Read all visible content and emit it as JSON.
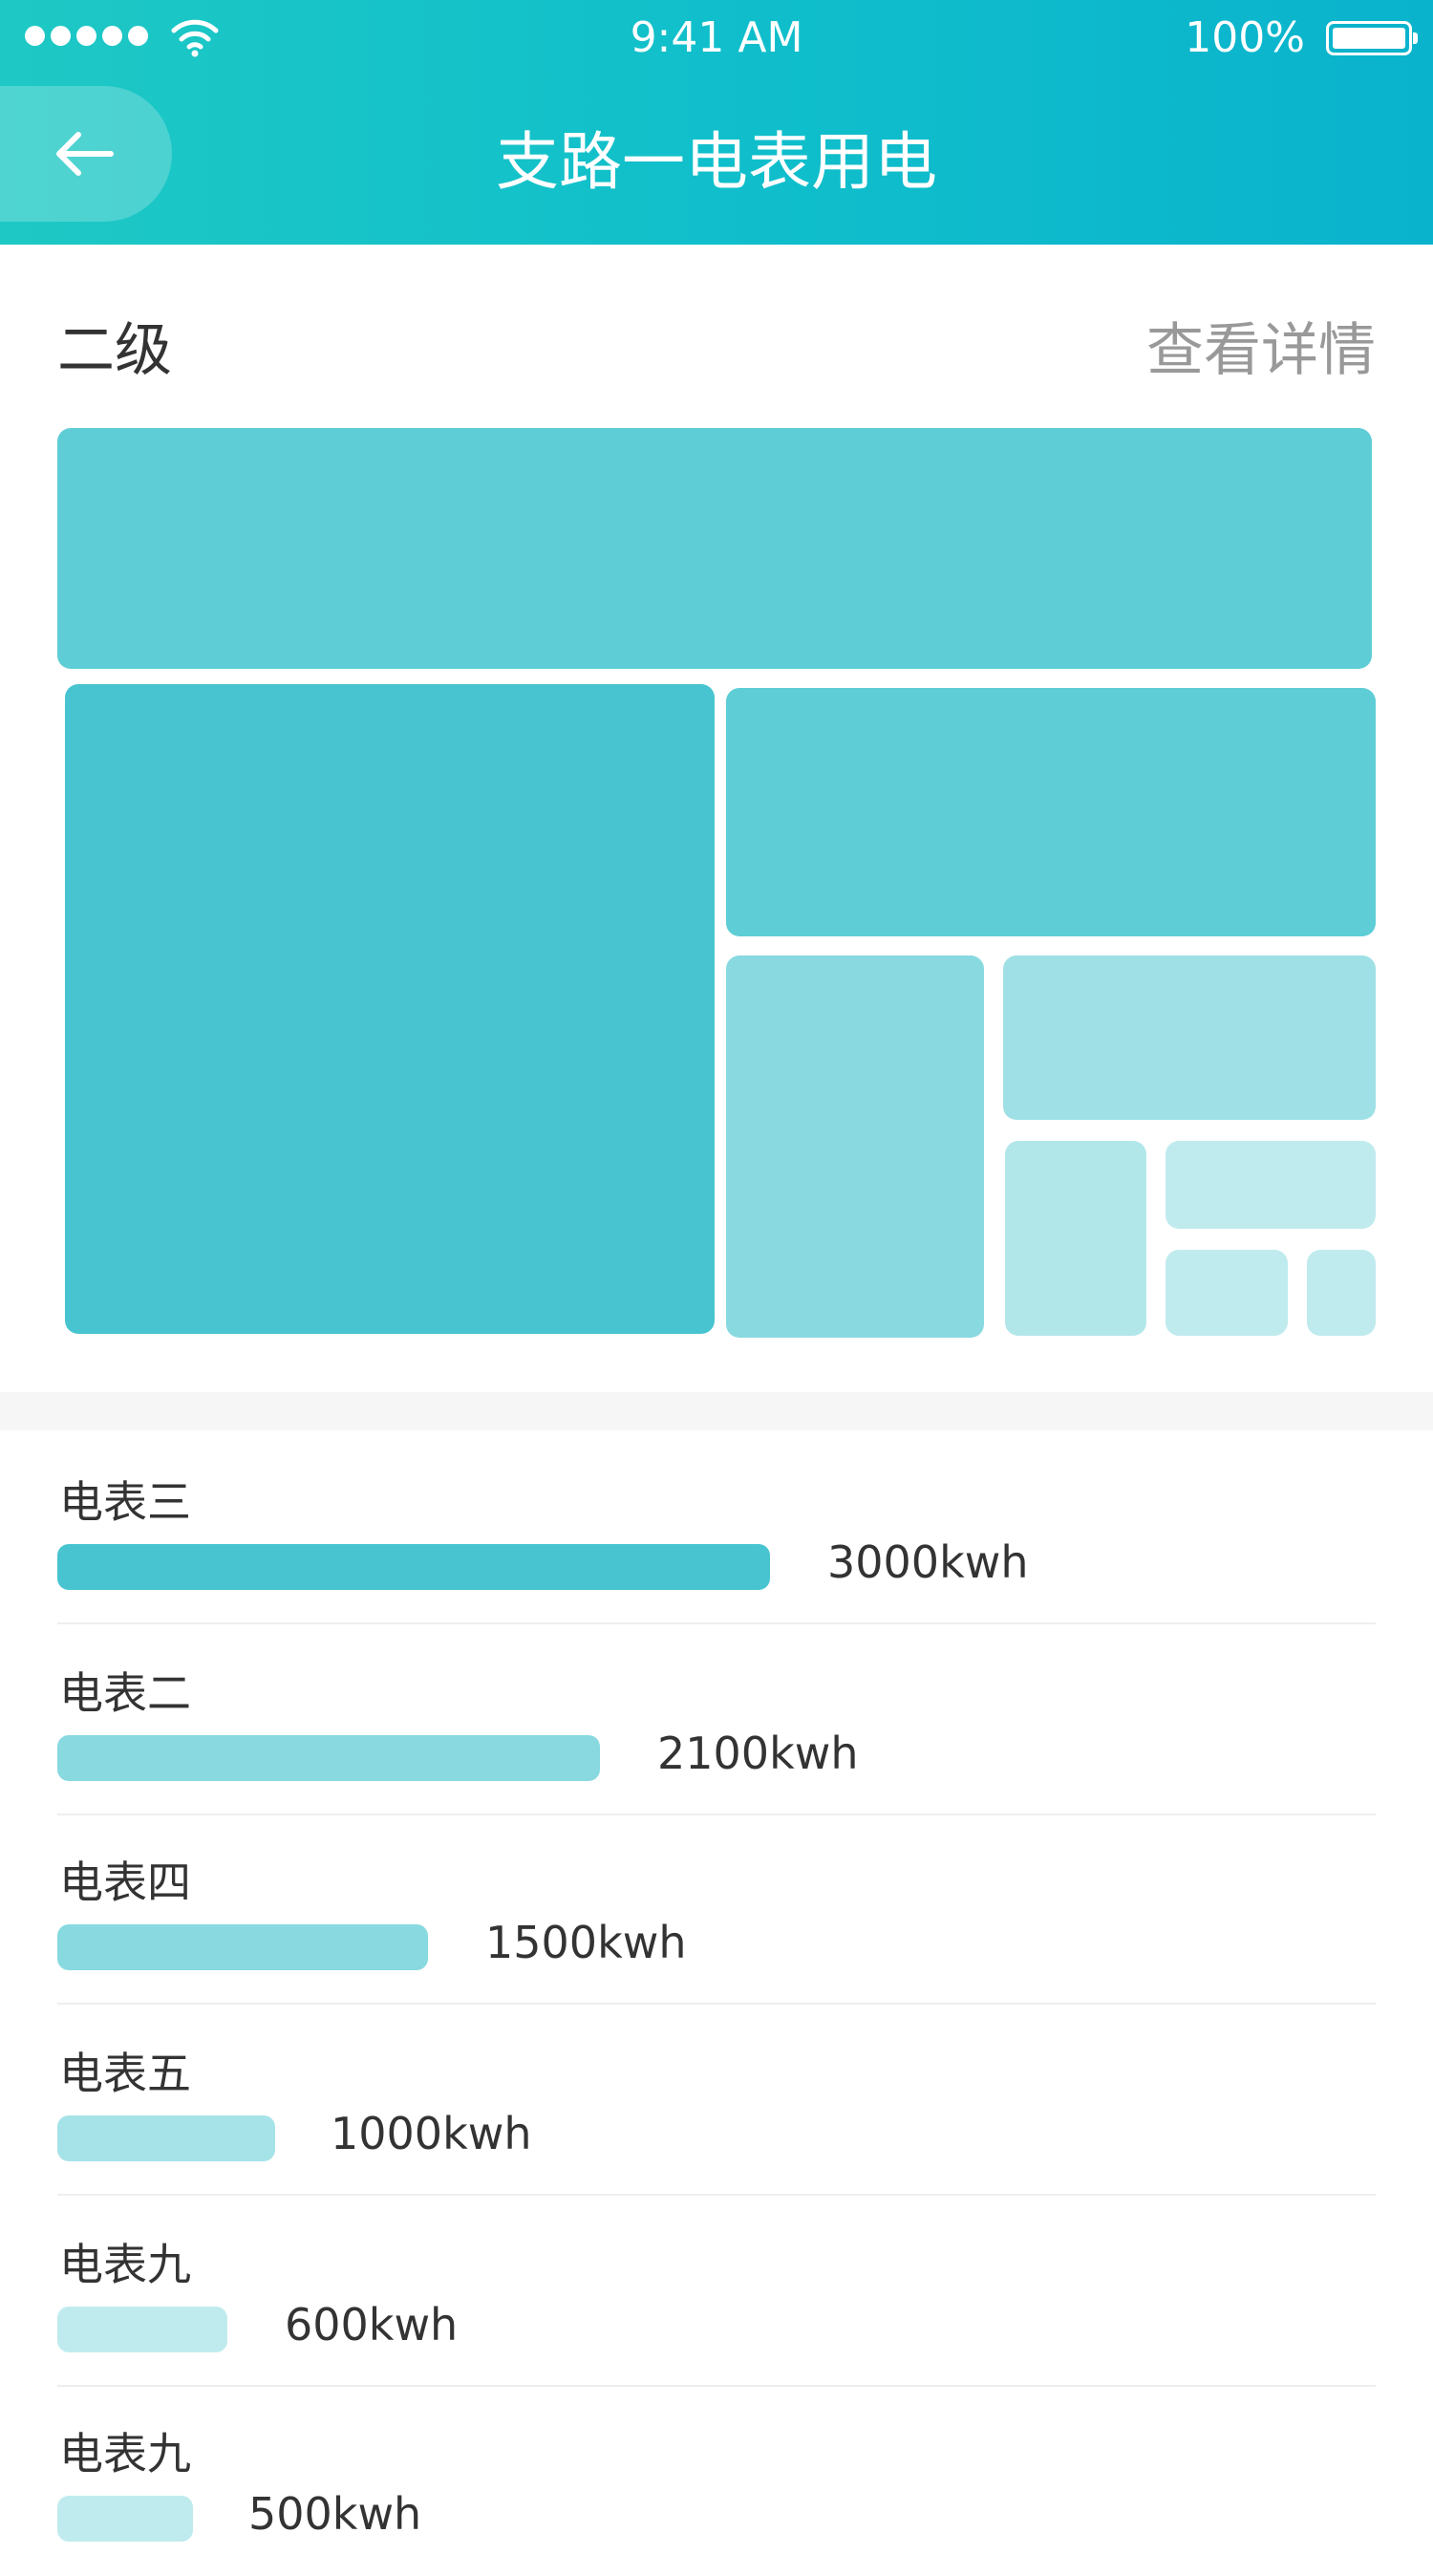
{
  "status_bar": {
    "time": "9:41 AM",
    "battery": "100%"
  },
  "nav": {
    "title": "支路一电表用电",
    "back_icon": "arrow-left-icon"
  },
  "section": {
    "level": "二级",
    "detail_link": "查看详情"
  },
  "colors": {
    "header_start": "#1ec8c4",
    "header_end": "#0ab3cc",
    "tile_dark": "#47c4d0",
    "tile_mid": "#5ecdd6",
    "tile_light": "#88d9e0",
    "tile_lighter": "#9ee0e5",
    "tile_lightest": "#c0ebee"
  },
  "meters": [
    {
      "name": "电表三",
      "value": "3000kwh",
      "amount": 3000
    },
    {
      "name": "电表二",
      "value": "2100kwh",
      "amount": 2100
    },
    {
      "name": "电表四",
      "value": "1500kwh",
      "amount": 1500
    },
    {
      "name": "电表五",
      "value": "1000kwh",
      "amount": 1000
    },
    {
      "name": "电表九",
      "value": "600kwh",
      "amount": 600
    },
    {
      "name": "电表九",
      "value": "500kwh",
      "amount": 500
    }
  ]
}
